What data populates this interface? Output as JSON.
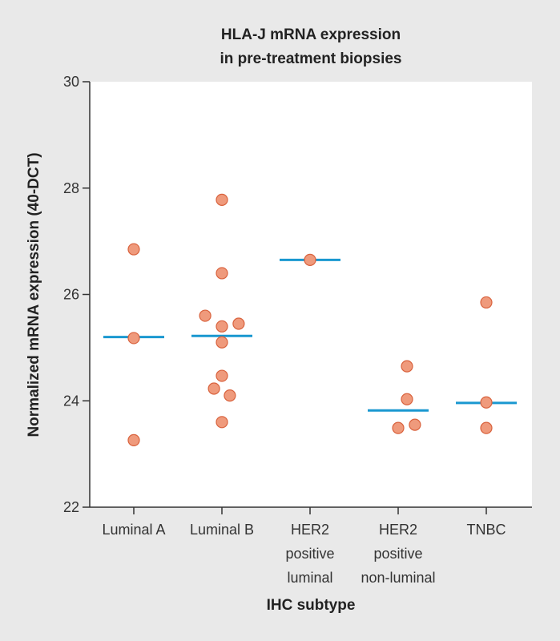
{
  "chart_data": {
    "type": "scatter",
    "title": [
      "HLA-J mRNA expression",
      "in pre-treatment biopsies"
    ],
    "xlabel": "IHC subtype",
    "ylabel": "Normalized mRNA expression (40-DCT)",
    "ylim": [
      22,
      30
    ],
    "yticks": [
      "22",
      "24",
      "26",
      "28",
      "30"
    ],
    "grid": false,
    "categories": [
      [
        "Luminal A"
      ],
      [
        "Luminal B"
      ],
      [
        "HER2",
        "positive",
        "luminal"
      ],
      [
        "HER2",
        "positive",
        "non-luminal"
      ],
      [
        "TNBC"
      ]
    ],
    "points": [
      {
        "cat": 0,
        "y": 26.85,
        "offset": 0
      },
      {
        "cat": 0,
        "y": 25.18,
        "offset": 0
      },
      {
        "cat": 0,
        "y": 23.26,
        "offset": 0
      },
      {
        "cat": 1,
        "y": 27.78,
        "offset": 0
      },
      {
        "cat": 1,
        "y": 26.4,
        "offset": 0
      },
      {
        "cat": 1,
        "y": 25.6,
        "offset": -0.19
      },
      {
        "cat": 1,
        "y": 25.45,
        "offset": 0.19
      },
      {
        "cat": 1,
        "y": 25.4,
        "offset": 0
      },
      {
        "cat": 1,
        "y": 25.1,
        "offset": 0
      },
      {
        "cat": 1,
        "y": 24.47,
        "offset": 0
      },
      {
        "cat": 1,
        "y": 24.23,
        "offset": -0.09
      },
      {
        "cat": 1,
        "y": 24.1,
        "offset": 0.09
      },
      {
        "cat": 1,
        "y": 23.6,
        "offset": 0
      },
      {
        "cat": 2,
        "y": 26.65,
        "offset": 0
      },
      {
        "cat": 3,
        "y": 24.65,
        "offset": 0.1
      },
      {
        "cat": 3,
        "y": 24.03,
        "offset": 0.1
      },
      {
        "cat": 3,
        "y": 23.55,
        "offset": 0.19
      },
      {
        "cat": 3,
        "y": 23.49,
        "offset": 0
      },
      {
        "cat": 4,
        "y": 25.85,
        "offset": 0
      },
      {
        "cat": 4,
        "y": 23.97,
        "offset": 0
      },
      {
        "cat": 4,
        "y": 23.49,
        "offset": 0
      }
    ],
    "medians": [
      25.2,
      25.22,
      26.65,
      23.82,
      23.96
    ],
    "colors": {
      "point_fill": "#ef9a7c",
      "point_stroke": "#d9623d",
      "median": "#1a98d0",
      "plot_bg": "#ffffff",
      "axis": "#333333"
    }
  }
}
